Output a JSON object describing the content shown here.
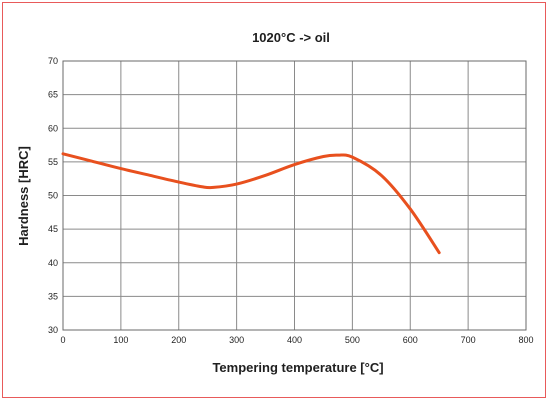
{
  "chart_data": {
    "type": "line",
    "title": "1020°C -> oil",
    "xlabel": "Tempering temperature [°C]",
    "ylabel": "Hardness [HRC]",
    "xlim": [
      0,
      800
    ],
    "ylim": [
      30,
      70
    ],
    "xticks": [
      0,
      100,
      200,
      300,
      400,
      500,
      600,
      700,
      800
    ],
    "yticks": [
      30,
      35,
      40,
      45,
      50,
      55,
      60,
      65,
      70
    ],
    "grid": true,
    "series": [
      {
        "color": "#e8501e",
        "x": [
          0,
          50,
          100,
          150,
          200,
          240,
          260,
          300,
          350,
          400,
          450,
          475,
          500,
          550,
          600,
          650
        ],
        "y": [
          56.2,
          55.1,
          54.0,
          53.0,
          52.0,
          51.3,
          51.2,
          51.7,
          53.0,
          54.6,
          55.8,
          56.0,
          55.7,
          53.0,
          48.0,
          41.5
        ]
      }
    ]
  }
}
